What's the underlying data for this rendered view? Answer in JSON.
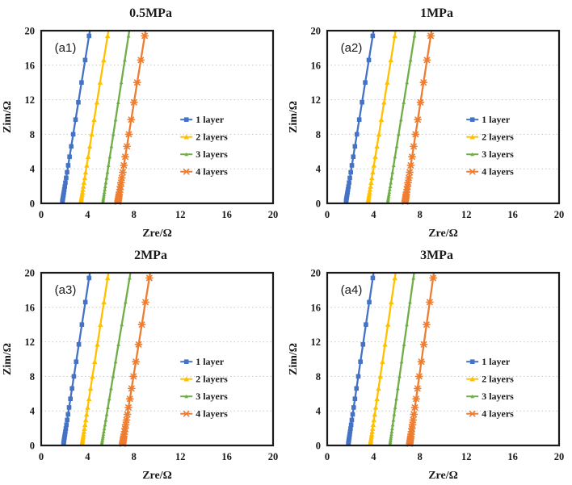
{
  "page": {
    "background_color": "#ffffff",
    "text_color": "#1a1a1a"
  },
  "chart_data": [
    {
      "type": "scatter",
      "panel_label": "(a1)",
      "title": "0.5MPa",
      "xlabel": "Zre/Ω",
      "ylabel": "Zim/Ω",
      "xlim": [
        0,
        20
      ],
      "ylim": [
        0,
        20
      ],
      "xticks": [
        0,
        4,
        8,
        12,
        16,
        20
      ],
      "yticks": [
        0,
        4,
        8,
        12,
        16,
        20
      ],
      "grid": "horizontal-dotted",
      "legend_position": "inside-right-middle",
      "marker_y_positions": [
        0.2,
        0.35,
        0.5,
        0.65,
        0.85,
        1.05,
        1.3,
        1.6,
        1.95,
        2.4,
        2.95,
        3.6,
        4.4,
        5.4,
        6.6,
        8.0,
        9.7,
        11.7,
        14.0,
        16.6,
        19.4
      ],
      "series": [
        {
          "name": "1 layer",
          "color": "#4472C4",
          "marker": "square",
          "line": {
            "x_at_y0": 1.8,
            "x_at_y20": 4.2
          }
        },
        {
          "name": "2 layers",
          "color": "#FFC000",
          "marker": "triangle",
          "line": {
            "x_at_y0": 3.4,
            "x_at_y20": 5.8
          }
        },
        {
          "name": "3 layers",
          "color": "#70AD47",
          "marker": "triangle-small",
          "line": {
            "x_at_y0": 5.3,
            "x_at_y20": 7.6
          }
        },
        {
          "name": "4 layers",
          "color": "#ED7D31",
          "marker": "x",
          "line": {
            "x_at_y0": 6.6,
            "x_at_y20": 9.0
          }
        }
      ]
    },
    {
      "type": "scatter",
      "panel_label": "(a2)",
      "title": "1MPa",
      "xlabel": "Zre/Ω",
      "ylabel": "Zim/Ω",
      "xlim": [
        0,
        20
      ],
      "ylim": [
        0,
        20
      ],
      "xticks": [
        0,
        4,
        8,
        12,
        16,
        20
      ],
      "yticks": [
        0,
        4,
        8,
        12,
        16,
        20
      ],
      "grid": "horizontal-dotted",
      "legend_position": "inside-right-middle",
      "marker_y_positions": [
        0.2,
        0.35,
        0.5,
        0.65,
        0.85,
        1.05,
        1.3,
        1.6,
        1.95,
        2.4,
        2.95,
        3.6,
        4.4,
        5.4,
        6.6,
        8.0,
        9.7,
        11.7,
        14.0,
        16.6,
        19.4
      ],
      "series": [
        {
          "name": "1 layer",
          "color": "#4472C4",
          "marker": "square",
          "line": {
            "x_at_y0": 1.6,
            "x_at_y20": 4.0
          }
        },
        {
          "name": "2 layers",
          "color": "#FFC000",
          "marker": "triangle",
          "line": {
            "x_at_y0": 3.5,
            "x_at_y20": 5.9
          }
        },
        {
          "name": "3 layers",
          "color": "#70AD47",
          "marker": "triangle-small",
          "line": {
            "x_at_y0": 5.2,
            "x_at_y20": 7.6
          }
        },
        {
          "name": "4 layers",
          "color": "#ED7D31",
          "marker": "x",
          "line": {
            "x_at_y0": 6.7,
            "x_at_y20": 9.0
          }
        }
      ]
    },
    {
      "type": "scatter",
      "panel_label": "(a3)",
      "title": "2MPa",
      "xlabel": "Zre/Ω",
      "ylabel": "Zim/Ω",
      "xlim": [
        0,
        20
      ],
      "ylim": [
        0,
        20
      ],
      "xticks": [
        0,
        4,
        8,
        12,
        16,
        20
      ],
      "yticks": [
        0,
        4,
        8,
        12,
        16,
        20
      ],
      "grid": "horizontal-dotted",
      "legend_position": "inside-right-middle",
      "marker_y_positions": [
        0.2,
        0.35,
        0.5,
        0.65,
        0.85,
        1.05,
        1.3,
        1.6,
        1.95,
        2.4,
        2.95,
        3.6,
        4.4,
        5.4,
        6.6,
        8.0,
        9.7,
        11.7,
        14.0,
        16.6,
        19.4
      ],
      "series": [
        {
          "name": "1 layer",
          "color": "#4472C4",
          "marker": "square",
          "line": {
            "x_at_y0": 1.9,
            "x_at_y20": 4.2
          }
        },
        {
          "name": "2 layers",
          "color": "#FFC000",
          "marker": "triangle",
          "line": {
            "x_at_y0": 3.5,
            "x_at_y20": 5.8
          }
        },
        {
          "name": "3 layers",
          "color": "#70AD47",
          "marker": "triangle-small",
          "line": {
            "x_at_y0": 5.2,
            "x_at_y20": 7.7
          }
        },
        {
          "name": "4 layers",
          "color": "#ED7D31",
          "marker": "x",
          "line": {
            "x_at_y0": 7.0,
            "x_at_y20": 9.4
          }
        }
      ]
    },
    {
      "type": "scatter",
      "panel_label": "(a4)",
      "title": "3MPa",
      "xlabel": "Zre/Ω",
      "ylabel": "Zim/Ω",
      "xlim": [
        0,
        20
      ],
      "ylim": [
        0,
        20
      ],
      "xticks": [
        0,
        4,
        8,
        12,
        16,
        20
      ],
      "yticks": [
        0,
        4,
        8,
        12,
        16,
        20
      ],
      "grid": "horizontal-dotted",
      "legend_position": "inside-right-middle",
      "marker_y_positions": [
        0.2,
        0.35,
        0.5,
        0.65,
        0.85,
        1.05,
        1.3,
        1.6,
        1.95,
        2.4,
        2.95,
        3.6,
        4.4,
        5.4,
        6.6,
        8.0,
        9.7,
        11.7,
        14.0,
        16.6,
        19.4
      ],
      "series": [
        {
          "name": "1 layer",
          "color": "#4472C4",
          "marker": "square",
          "line": {
            "x_at_y0": 1.8,
            "x_at_y20": 4.0
          }
        },
        {
          "name": "2 layers",
          "color": "#FFC000",
          "marker": "triangle",
          "line": {
            "x_at_y0": 3.7,
            "x_at_y20": 5.9
          }
        },
        {
          "name": "3 layers",
          "color": "#70AD47",
          "marker": "triangle-small",
          "line": {
            "x_at_y0": 5.4,
            "x_at_y20": 7.5
          }
        },
        {
          "name": "4 layers",
          "color": "#ED7D31",
          "marker": "x",
          "line": {
            "x_at_y0": 7.1,
            "x_at_y20": 9.2
          }
        }
      ]
    }
  ],
  "style": {
    "frame_color": "#1a1a1a",
    "gridline_color": "#c6c6c6",
    "title_font_size": 16,
    "tick_font_size": 12.5,
    "axis_title_font_size": 14,
    "legend_font_size": 12,
    "panel_label_font_size": 15
  }
}
